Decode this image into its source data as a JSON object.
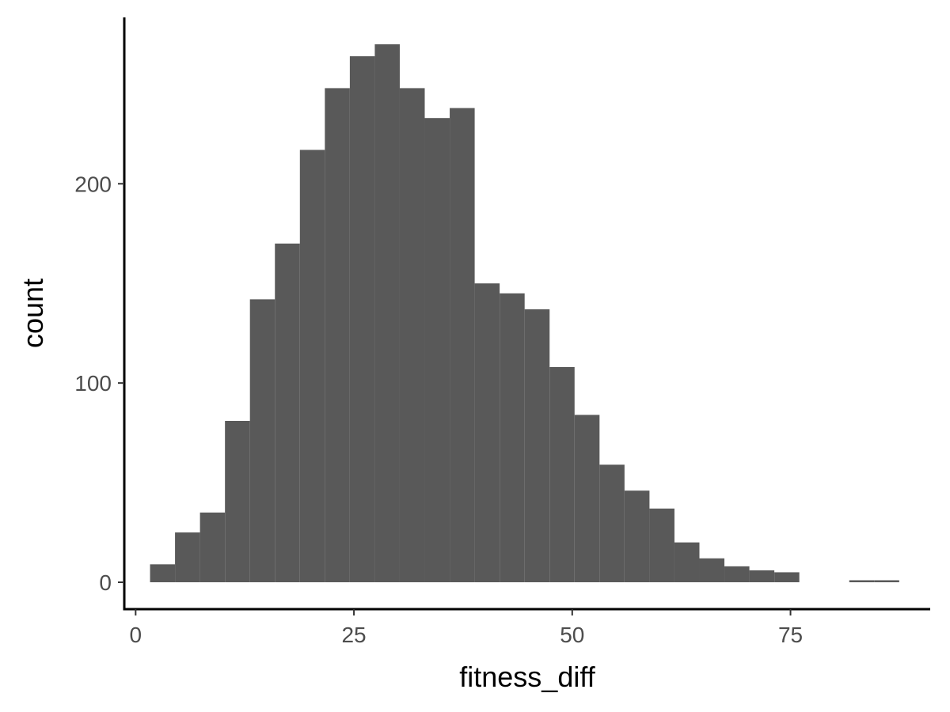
{
  "chart_data": {
    "type": "bar",
    "subtype": "histogram",
    "title": "",
    "xlabel": "fitness_diff",
    "ylabel": "count",
    "xlim": [
      -1.3,
      91.0
    ],
    "ylim": [
      -13.5,
      283.5
    ],
    "x_ticks": [
      0,
      25,
      50,
      75
    ],
    "x_tick_labels": [
      "0",
      "25",
      "50",
      "75"
    ],
    "y_ticks": [
      0,
      100,
      200
    ],
    "y_tick_labels": [
      "0",
      "100",
      "200"
    ],
    "bin_width": 2.86,
    "bins": [
      {
        "x0": 1.65,
        "x1": 4.51,
        "count": 9
      },
      {
        "x0": 4.51,
        "x1": 7.37,
        "count": 25
      },
      {
        "x0": 7.37,
        "x1": 10.23,
        "count": 35
      },
      {
        "x0": 10.23,
        "x1": 13.09,
        "count": 81
      },
      {
        "x0": 13.09,
        "x1": 15.95,
        "count": 142
      },
      {
        "x0": 15.95,
        "x1": 18.81,
        "count": 170
      },
      {
        "x0": 18.81,
        "x1": 21.67,
        "count": 217
      },
      {
        "x0": 21.67,
        "x1": 24.53,
        "count": 248
      },
      {
        "x0": 24.53,
        "x1": 27.39,
        "count": 264
      },
      {
        "x0": 27.39,
        "x1": 30.25,
        "count": 270
      },
      {
        "x0": 30.25,
        "x1": 33.11,
        "count": 248
      },
      {
        "x0": 33.11,
        "x1": 35.97,
        "count": 233
      },
      {
        "x0": 35.97,
        "x1": 38.83,
        "count": 238
      },
      {
        "x0": 38.83,
        "x1": 41.69,
        "count": 150
      },
      {
        "x0": 41.69,
        "x1": 44.55,
        "count": 145
      },
      {
        "x0": 44.55,
        "x1": 47.41,
        "count": 137
      },
      {
        "x0": 47.41,
        "x1": 50.27,
        "count": 108
      },
      {
        "x0": 50.27,
        "x1": 53.13,
        "count": 84
      },
      {
        "x0": 53.13,
        "x1": 55.99,
        "count": 59
      },
      {
        "x0": 55.99,
        "x1": 58.85,
        "count": 46
      },
      {
        "x0": 58.85,
        "x1": 61.71,
        "count": 37
      },
      {
        "x0": 61.71,
        "x1": 64.57,
        "count": 20
      },
      {
        "x0": 64.57,
        "x1": 67.43,
        "count": 12
      },
      {
        "x0": 67.43,
        "x1": 70.29,
        "count": 8
      },
      {
        "x0": 70.29,
        "x1": 73.15,
        "count": 6
      },
      {
        "x0": 73.15,
        "x1": 76.01,
        "count": 5
      },
      {
        "x0": 76.01,
        "x1": 78.87,
        "count": 0
      },
      {
        "x0": 78.87,
        "x1": 81.73,
        "count": 0
      },
      {
        "x0": 81.73,
        "x1": 84.59,
        "count": 1
      },
      {
        "x0": 84.59,
        "x1": 87.45,
        "count": 1
      }
    ],
    "bar_color": "#595959",
    "axis_color": "#000000",
    "tick_label_color": "#4d4d4d",
    "grid": false,
    "legend": "none"
  }
}
